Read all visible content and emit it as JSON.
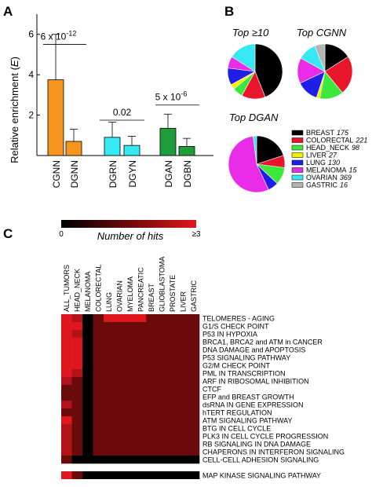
{
  "panels": {
    "a": "A",
    "b": "B",
    "c": "C"
  },
  "colors": {
    "orange": "#F7941D",
    "cyan": "#36E8F2",
    "green": "#1E9E3A",
    "black": "#000000",
    "red": "#E8152B",
    "lime": "#3CE83C",
    "yellow": "#F4F000",
    "blue": "#1E1EE6",
    "magenta": "#E82CE8",
    "gray": "#B4B4B4",
    "heat_low": "#000000",
    "heat_mid": "#6B0A0A",
    "heat_high": "#E0161E"
  },
  "chart_data": [
    {
      "type": "bar",
      "panel": "A",
      "ylabel": "Relative enrichment (",
      "ylabel_italic": "E",
      "ylabel_close": ")",
      "ylim": [
        0,
        7
      ],
      "yticks": [
        "2",
        "4",
        "6"
      ],
      "categories": [
        "CGNN",
        "DGNN",
        "DGRN",
        "DGYN",
        "DGAN",
        "DGBN"
      ],
      "values": [
        3.75,
        0.7,
        0.9,
        0.5,
        1.35,
        0.45
      ],
      "errors": [
        2.25,
        0.6,
        0.75,
        0.45,
        0.7,
        0.4
      ],
      "bar_colors": [
        "orange",
        "orange",
        "cyan",
        "cyan",
        "green",
        "green"
      ],
      "annotations": [
        {
          "pair": [
            0,
            1
          ],
          "level": 5.5,
          "base": "6 x 10",
          "exp": "-12"
        },
        {
          "pair": [
            2,
            3
          ],
          "level": 1.75,
          "base": "0.02",
          "exp": ""
        },
        {
          "pair": [
            4,
            5
          ],
          "level": 2.5,
          "base": "5 x 10",
          "exp": "-6"
        }
      ]
    },
    {
      "type": "pie",
      "panel": "B",
      "pies": [
        {
          "title": "Top ≥10",
          "values": [
            0.44,
            0.14,
            0.06,
            0.03,
            0.1,
            0.07,
            0.16,
            0.0
          ]
        },
        {
          "title": "Top CGNN",
          "values": [
            0.16,
            0.23,
            0.14,
            0.02,
            0.13,
            0.15,
            0.11,
            0.06
          ]
        },
        {
          "title": "Top DGAN",
          "values": [
            0.2,
            0.07,
            0.1,
            0.0,
            0.06,
            0.55,
            0.02,
            0.0
          ]
        }
      ],
      "legend": [
        {
          "name": "BREAST",
          "count": "175",
          "color": "black"
        },
        {
          "name": "COLORECTAL",
          "count": "221",
          "color": "red"
        },
        {
          "name": "HEAD_NECK",
          "count": "98",
          "color": "lime"
        },
        {
          "name": "LIVER",
          "count": "27",
          "color": "yellow"
        },
        {
          "name": "LUNG",
          "count": "130",
          "color": "blue"
        },
        {
          "name": "MELANOMA",
          "count": "15",
          "color": "magenta"
        },
        {
          "name": "OVARIAN",
          "count": "369",
          "color": "cyan"
        },
        {
          "name": "GASTRIC",
          "count": "16",
          "color": "gray"
        }
      ]
    },
    {
      "type": "heatmap",
      "panel": "C",
      "colorbar": {
        "min_label": "0",
        "max_label": "≥3",
        "title": "Number of hits"
      },
      "columns": [
        "ALL_TUMORS",
        "HEAD_NECK",
        "MELANOMA",
        "COLORECTAL",
        "LUNG",
        "OVARIAN",
        "MYELOMA",
        "PANCREATIC",
        "BREAST",
        "GLIOBLASTOMA",
        "PROSTATE",
        "LIVER",
        "GASTRIC"
      ],
      "rows": [
        "TELOMERES - AGING",
        "G1/S CHECK POINT",
        "P53 IN HYPOXIA",
        "BRCA1, BRCA2 and ATM in CANCER",
        "DNA DAMAGE and APOPTOSIS",
        "P53 SIGNALING PATHWAY",
        "G2/M CHECK POINT",
        "PML IN TRANSCRIPTION",
        "ARF IN RIBOSOMAL INHIBITION",
        "CTCF",
        "EFP and BREAST GROWTH",
        "dsRNA IN GENE EXPRESSION",
        "hTERT REGULATION",
        "ATM SIGNALING PATHWAY",
        "BTG IN CELL CYCLE",
        "PLK3 IN CELL CYCLE PROGRESSION",
        "RB SIGNALING IN DNA DAMAGE",
        "CHAPERONS IN INTERFERON SIGNALING",
        "CELL-CELL ADHESION SIGNALING"
      ],
      "values": [
        [
          3,
          2,
          0,
          1,
          3,
          3,
          3,
          3,
          1,
          1,
          1,
          1,
          1
        ],
        [
          3,
          3,
          0,
          1,
          1,
          1,
          1,
          1,
          1,
          1,
          1,
          1,
          1
        ],
        [
          3,
          2,
          0,
          1,
          1,
          1,
          1,
          1,
          1,
          1,
          1,
          1,
          1
        ],
        [
          3,
          3,
          0,
          1,
          1,
          1,
          1,
          1,
          1,
          1,
          1,
          1,
          1
        ],
        [
          3,
          3,
          0,
          1,
          1,
          1,
          1,
          1,
          1,
          1,
          1,
          1,
          1
        ],
        [
          3,
          3,
          0,
          1,
          1,
          1,
          1,
          1,
          1,
          1,
          1,
          1,
          1
        ],
        [
          3,
          3,
          0,
          1,
          1,
          1,
          1,
          1,
          1,
          1,
          1,
          1,
          1
        ],
        [
          3,
          2,
          0,
          1,
          1,
          1,
          1,
          1,
          1,
          1,
          1,
          1,
          1
        ],
        [
          2,
          1,
          0,
          1,
          1,
          1,
          1,
          1,
          1,
          1,
          1,
          1,
          1
        ],
        [
          1,
          1,
          0,
          1,
          1,
          1,
          1,
          1,
          1,
          1,
          1,
          1,
          1
        ],
        [
          1,
          1,
          0,
          1,
          1,
          1,
          1,
          1,
          1,
          1,
          1,
          1,
          1
        ],
        [
          2,
          1,
          0,
          1,
          1,
          1,
          1,
          1,
          1,
          1,
          1,
          1,
          1
        ],
        [
          1,
          1,
          0,
          1,
          1,
          1,
          1,
          1,
          1,
          1,
          1,
          1,
          1
        ],
        [
          3,
          1,
          0,
          1,
          1,
          1,
          1,
          1,
          1,
          1,
          1,
          1,
          1
        ],
        [
          2,
          1,
          0,
          1,
          1,
          1,
          1,
          1,
          1,
          1,
          1,
          1,
          1
        ],
        [
          2,
          1,
          0,
          1,
          1,
          1,
          1,
          1,
          1,
          1,
          1,
          1,
          1
        ],
        [
          2,
          1,
          0,
          1,
          1,
          1,
          1,
          1,
          1,
          1,
          1,
          1,
          1
        ],
        [
          2,
          1,
          0,
          1,
          1,
          1,
          1,
          1,
          1,
          1,
          1,
          1,
          1
        ],
        [
          1,
          0,
          0,
          0,
          0,
          0,
          0,
          0,
          0,
          0,
          0,
          0,
          0
        ]
      ],
      "separate_row": {
        "label": "MAP KINASE SIGNALING PATHWAY",
        "values": [
          3,
          1,
          0,
          0,
          0,
          0,
          0,
          0,
          0,
          0,
          0,
          0,
          0
        ]
      }
    }
  ]
}
